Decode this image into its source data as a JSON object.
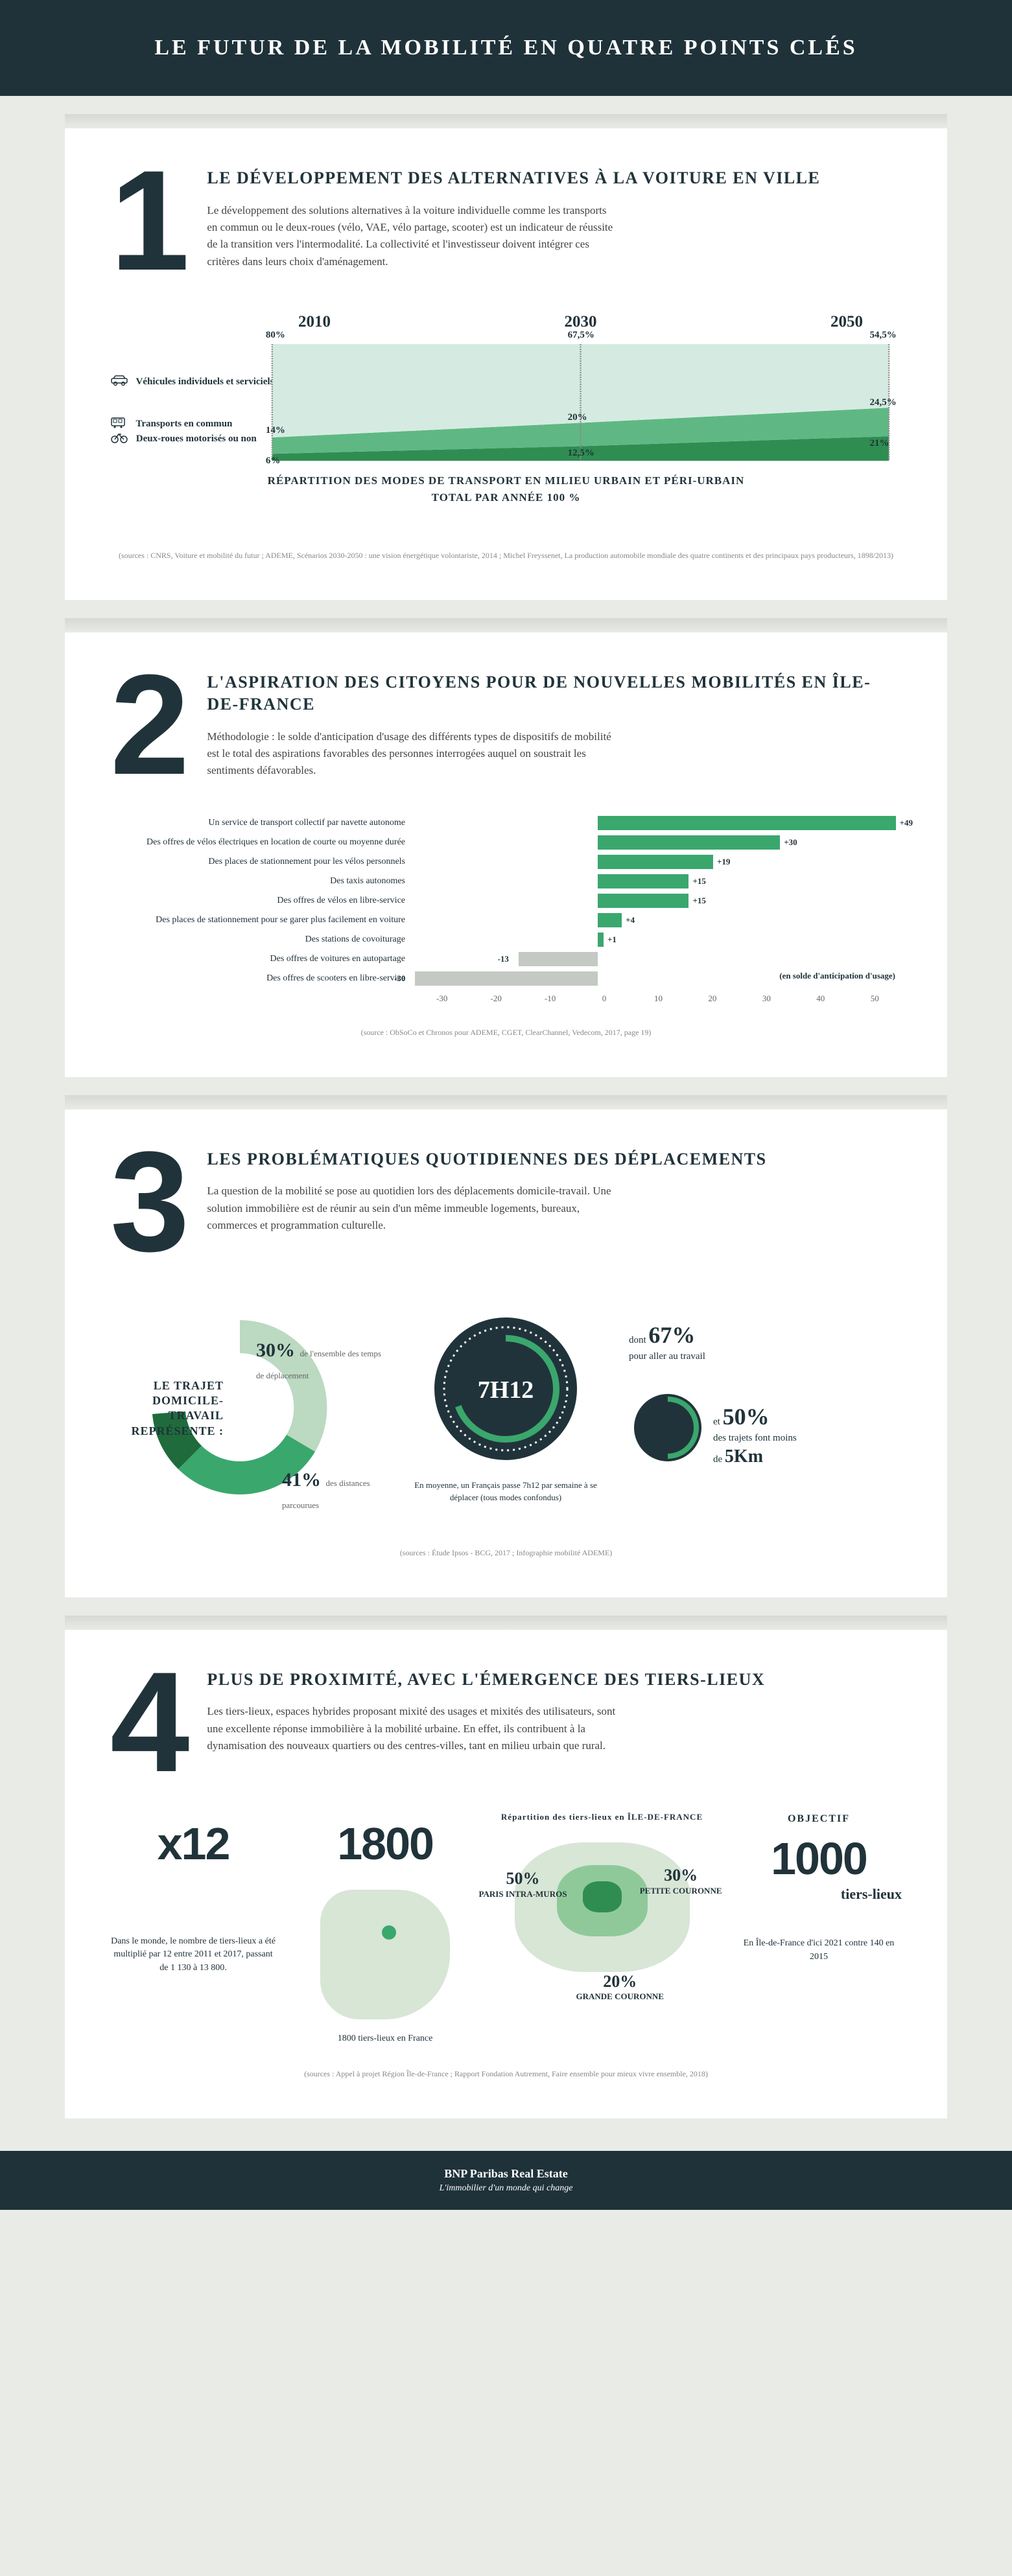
{
  "header_title": "LE FUTUR DE LA MOBILITÉ EN QUATRE POINTS CLÉS",
  "footer_brand": "BNP Paribas Real Estate",
  "footer_tag": "L'immobilier d'un monde qui change",
  "s1": {
    "num": "1",
    "title": "LE DÉVELOPPEMENT DES ALTERNATIVES À LA VOITURE EN VILLE",
    "body": "Le développement des solutions alternatives à la voiture individuelle comme les transports en commun ou le deux-roues (vélo, VAE, vélo partage, scooter) est un indicateur de réussite de la transition vers l'intermodalité. La collectivité et l'investisseur doivent intégrer ces critères dans leurs choix d'aménagement.",
    "years": [
      "2010",
      "2030",
      "2050"
    ],
    "legend_rows": [
      "Véhicules individuels et serviciels",
      "Transports en commun",
      "Deux-roues motorisés ou non"
    ],
    "series": {
      "vehicules": [
        "80%",
        "67,5%",
        "54,5%"
      ],
      "transports": [
        "14%",
        "20%",
        "24,5%"
      ],
      "deuxroues": [
        "6%",
        "12,5%",
        "21%"
      ]
    },
    "colors": {
      "vehicules": "#d5ebe1",
      "transports": "#5fb883",
      "deuxroues": "#2f8d52"
    },
    "caption": "RÉPARTITION DES MODES DE TRANSPORT EN MILIEU URBAIN ET PÉRI-URBAIN\nTOTAL PAR ANNÉE 100 %",
    "source": "(sources : CNRS, Voiture et mobilité du futur ; ADEME, Scénarios 2030-2050 : une vision énergétique volontariste, 2014 ; Michel Freyssenet, La production automobile mondiale des quatre continents et des principaux pays producteurs, 1898/2013)"
  },
  "s2": {
    "num": "2",
    "title": "L'ASPIRATION DES CITOYENS POUR DE NOUVELLES MOBILITÉS EN ÎLE-DE-FRANCE",
    "body": "Méthodologie : le solde d'anticipation d'usage des différents types de dispositifs de mobilité est le total des aspirations favorables des personnes interrogées auquel on soustrait les sentiments défavorables.",
    "items": [
      {
        "label": "Un service de transport collectif par navette autonome",
        "val": 49
      },
      {
        "label": "Des offres de vélos électriques en location de courte ou moyenne durée",
        "val": 30
      },
      {
        "label": "Des places de stationnement pour les vélos personnels",
        "val": 19
      },
      {
        "label": "Des taxis autonomes",
        "val": 15
      },
      {
        "label": "Des offres de vélos en libre-service",
        "val": 15
      },
      {
        "label": "Des places de stationnement pour se garer plus facilement en voiture",
        "val": 4
      },
      {
        "label": "Des stations de covoiturage",
        "val": 1
      },
      {
        "label": "Des offres de voitures en autopartage",
        "val": -13
      },
      {
        "label": "Des offres de scooters en libre-service",
        "val": -30
      }
    ],
    "axis_ticks": [
      "-30",
      "-20",
      "-10",
      "0",
      "10",
      "20",
      "30",
      "40",
      "50"
    ],
    "axis_note": "(en solde d'anticipation d'usage)",
    "xlim": [
      -30,
      50
    ],
    "colors": {
      "pos": "#3aa76d",
      "neg": "#c4c9c3"
    },
    "source": "(source : ObSoCo et Chronos pour ADEME, CGET, ClearChannel, Vedecom, 2017, page 19)"
  },
  "s3": {
    "num": "3",
    "title": "LES PROBLÉMATIQUES QUOTIDIENNES DES DÉPLACEMENTS",
    "body": "La question de la mobilité se pose au quotidien lors des déplacements domicile-travail. Une solution immobilière est de réunir au sein d'un même immeuble logements, bureaux, commerces et programmation culturelle.",
    "donut_lead": "LE TRAJET DOMICILE-TRAVAIL REPRÉSENTE :",
    "donut_30": "30%",
    "donut_30_lbl": "de l'ensemble des temps de déplacement",
    "donut_41": "41%",
    "donut_41_lbl": "des distances parcourues",
    "donut_colors": {
      "seg1": "#bcd9c1",
      "seg2": "#3aa76d",
      "seg3": "#1f6b3c"
    },
    "gauge_value": "7H12",
    "gauge_caption": "En moyenne, un Français passe 7h12 par semaine à se déplacer (tous modes confondus)",
    "right_67_pre": "dont",
    "right_67": "67%",
    "right_67_lbl": "pour aller au travail",
    "right_50_pre": "et",
    "right_50": "50%",
    "right_50_lbl": "des trajets font moins de",
    "right_50_km": "5Km",
    "source": "(sources : Étude Ipsos - BCG, 2017 ; Infographie mobilité ADEME)"
  },
  "s4": {
    "num": "4",
    "title": "PLUS DE PROXIMITÉ, AVEC L'ÉMERGENCE DES TIERS-LIEUX",
    "body": "Les tiers-lieux, espaces hybrides proposant mixité des usages et mixités des utilisateurs, sont une excellente réponse immobilière à la mobilité urbaine. En effet, ils contribuent à la dynamisation des nouveaux quartiers ou des centres-villes, tant en milieu urbain que rural.",
    "col1_big": "x12",
    "col1_txt": "Dans le monde, le nombre de tiers-lieux a été multiplié par 12 entre 2011 et 2017, passant de 1 130 à 13 800.",
    "col2_big": "1800",
    "col2_txt": "1800 tiers-lieux en France",
    "map_title": "Répartition des tiers-lieux en ÎLE-DE-FRANCE",
    "map_rings": [
      {
        "pct": "50%",
        "lbl": "PARIS INTRA-MUROS"
      },
      {
        "pct": "30%",
        "lbl": "PETITE COURONNE"
      },
      {
        "pct": "20%",
        "lbl": "GRANDE COURONNE"
      }
    ],
    "col4_obj": "OBJECTIF",
    "col4_big": "1000",
    "col4_unit": "tiers-lieux",
    "col4_txt": "En Île-de-France d'ici 2021 contre 140 en 2015",
    "source": "(sources : Appel à projet Région Île-de-France ; Rapport Fondation Autrement, Faire ensemble pour mieux vivre ensemble, 2018)"
  }
}
